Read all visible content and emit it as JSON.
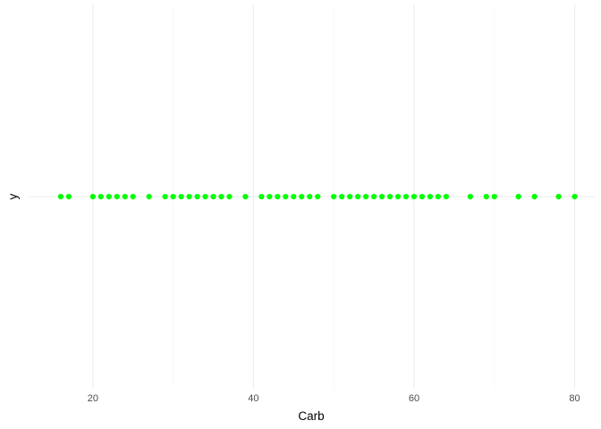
{
  "chart_data": {
    "type": "scatter",
    "title": "",
    "xlabel": "Carb",
    "ylabel": "y",
    "xlim": [
      12,
      82.5
    ],
    "x_ticks": [
      20,
      40,
      60,
      80
    ],
    "x_tick_labels": [
      "20",
      "40",
      "60",
      "80"
    ],
    "point_color": "#00FF00",
    "grid": true,
    "legend": "none",
    "series": [
      {
        "values": [
          16,
          17,
          20,
          21,
          22,
          23,
          24,
          25,
          27,
          29,
          30,
          31,
          32,
          33,
          34,
          35,
          36,
          37,
          39,
          41,
          42,
          43,
          44,
          45,
          46,
          47,
          48,
          50,
          51,
          52,
          53,
          54,
          55,
          56,
          57,
          58,
          59,
          60,
          61,
          62,
          63,
          64,
          67,
          69,
          70,
          73,
          75,
          78,
          80
        ]
      }
    ]
  }
}
